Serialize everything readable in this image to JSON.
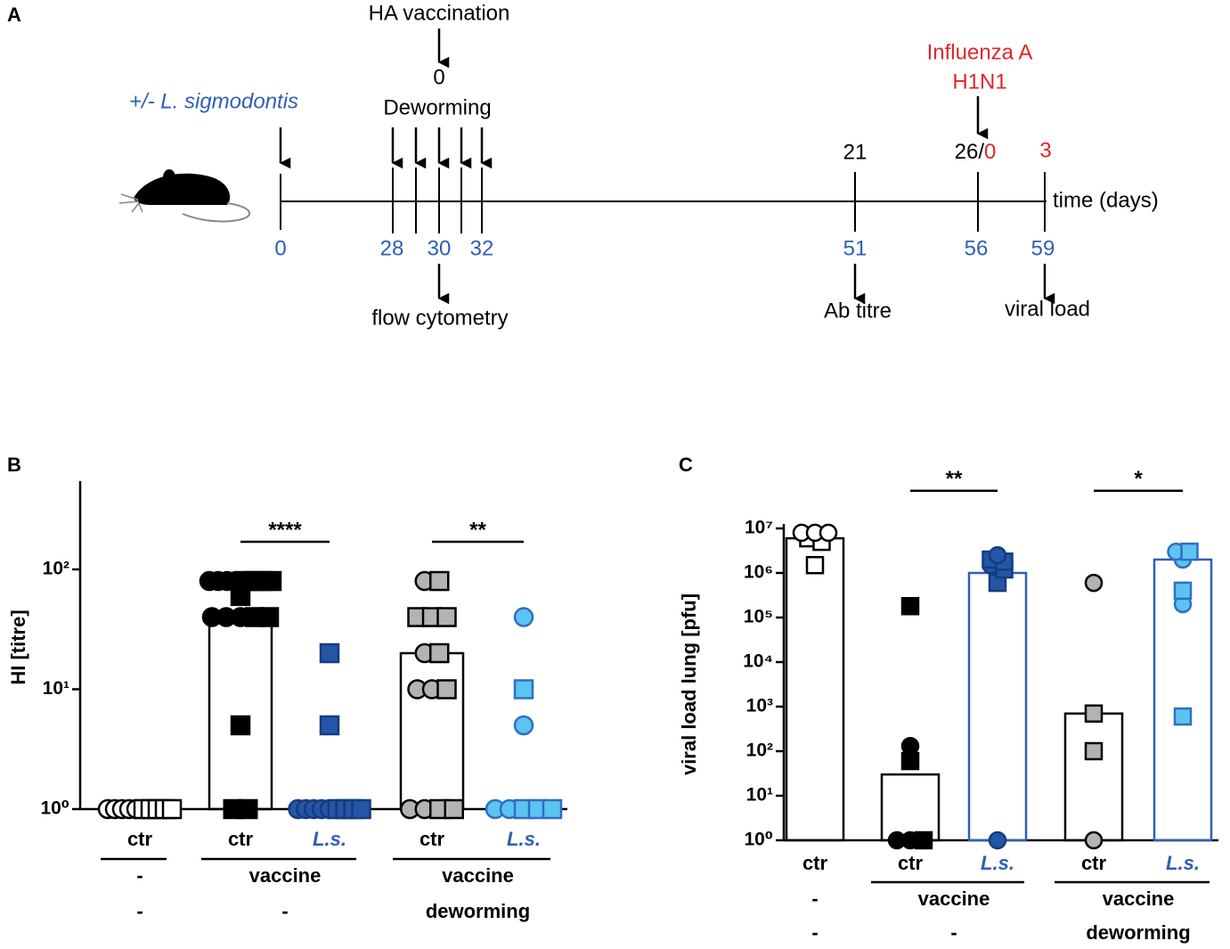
{
  "timeline": {
    "label": "A",
    "infection": "+/- L. sigmodontis",
    "vaccination": "HA vaccination",
    "vaccination_day": 0,
    "deworming": "Deworming",
    "challenge": [
      "Influenza A",
      "H1N1"
    ],
    "post_vaccination_days": [
      21,
      26
    ],
    "separator": "/",
    "post_challenge_days": [
      0,
      3
    ],
    "days": [
      0,
      28,
      30,
      32,
      51,
      56,
      59
    ],
    "readouts": [
      "flow cytometry",
      "Ab titre",
      "viral load"
    ],
    "axis_label": "time (days)"
  },
  "chart_data": [
    {
      "type": "bar",
      "label": "B",
      "ylabel": "HI [titre]",
      "log": true,
      "ylim": [
        1,
        500
      ],
      "yticks": [
        {
          "value": 1,
          "label": "10⁰"
        },
        {
          "value": 10,
          "label": "10¹"
        },
        {
          "value": 100,
          "label": "10²"
        }
      ],
      "groups": [
        {
          "category": "ctr",
          "category_color": "#000000",
          "italic": false,
          "bar": 1,
          "fill": "#ffffff",
          "edge": "#000000",
          "bar_edge": "#000000",
          "circles": [
            1,
            1,
            1,
            1,
            1
          ],
          "squares": [
            1,
            1,
            1,
            1,
            1
          ]
        },
        {
          "category": "ctr",
          "category_color": "#000000",
          "italic": false,
          "bar": 40,
          "fill": "#000000",
          "edge": "#000000",
          "bar_edge": "#000000",
          "circles": [
            80,
            80,
            80,
            80,
            40,
            40,
            40
          ],
          "squares": [
            80,
            80,
            80,
            80,
            60,
            40,
            40,
            5,
            1,
            1
          ]
        },
        {
          "category": "L.s.",
          "category_color": "#2f5fb4",
          "italic": true,
          "bar": 1,
          "fill": "#2456a6",
          "edge": "#143c80",
          "bar_edge": "#2f5fb4",
          "circles": [
            1,
            1,
            1,
            1,
            1
          ],
          "squares": [
            20,
            5,
            1,
            1,
            1,
            1
          ]
        },
        {
          "category": "ctr",
          "category_color": "#000000",
          "italic": false,
          "bar": 20,
          "fill": "#b3b3b3",
          "edge": "#000000",
          "bar_edge": "#000000",
          "circles": [
            80,
            20,
            10,
            10,
            1,
            1
          ],
          "squares": [
            80,
            40,
            40,
            40,
            20,
            10,
            1,
            1
          ]
        },
        {
          "category": "L.s.",
          "category_color": "#2f5fb4",
          "italic": true,
          "bar": 1,
          "fill": "#5cc4f0",
          "edge": "#2f6fc0",
          "bar_edge": "#2f5fb4",
          "circles": [
            40,
            5,
            1,
            1
          ],
          "squares": [
            10,
            1,
            1,
            1
          ]
        }
      ],
      "rows": [
        [
          {
            "label": "-",
            "from": 0,
            "to": 0,
            "line_above": true
          },
          {
            "label": "vaccine",
            "from": 1,
            "to": 2,
            "line_above": true
          },
          {
            "label": "vaccine",
            "from": 3,
            "to": 4,
            "line_above": true
          }
        ],
        [
          {
            "label": "-",
            "from": 0,
            "to": 0,
            "line_above": false
          },
          {
            "label": "-",
            "from": 1,
            "to": 2,
            "line_above": false
          },
          {
            "label": "deworming",
            "from": 3,
            "to": 4,
            "line_above": false
          }
        ]
      ],
      "significance": [
        {
          "label": "****",
          "from": 1,
          "to": 2,
          "y": 170
        },
        {
          "label": "**",
          "from": 3,
          "to": 4,
          "y": 170
        }
      ]
    },
    {
      "type": "bar",
      "label": "C",
      "ylabel": "viral load lung [pfu]",
      "log": true,
      "ylim": [
        1,
        10000000
      ],
      "yticks": [
        {
          "value": 1,
          "label": "10⁰"
        },
        {
          "value": 10,
          "label": "10¹"
        },
        {
          "value": 100,
          "label": "10²"
        },
        {
          "value": 1000,
          "label": "10³"
        },
        {
          "value": 10000,
          "label": "10⁴"
        },
        {
          "value": 100000,
          "label": "10⁵"
        },
        {
          "value": 1000000,
          "label": "10⁶"
        },
        {
          "value": 10000000,
          "label": "10⁷"
        }
      ],
      "groups": [
        {
          "category": "ctr",
          "category_color": "#000000",
          "italic": false,
          "bar": 6000000,
          "fill": "#ffffff",
          "edge": "#000000",
          "bar_edge": "#000000",
          "circles": [
            8000000,
            8000000,
            8000000
          ],
          "squares": [
            6000000,
            5000000,
            1500000
          ]
        },
        {
          "category": "ctr",
          "category_color": "#000000",
          "italic": false,
          "bar": 30,
          "fill": "#000000",
          "edge": "#000000",
          "bar_edge": "#000000",
          "circles": [
            130,
            1,
            1
          ],
          "squares": [
            180000,
            60,
            1
          ]
        },
        {
          "category": "L.s.",
          "category_color": "#2f5fb4",
          "italic": true,
          "bar": 1000000,
          "fill": "#2456a6",
          "edge": "#143c80",
          "bar_edge": "#2f5fb4",
          "circles": [
            2500000,
            1500000,
            1
          ],
          "squares": [
            2000000,
            1800000,
            1200000,
            600000
          ]
        },
        {
          "category": "ctr",
          "category_color": "#000000",
          "italic": false,
          "bar": 700,
          "fill": "#b3b3b3",
          "edge": "#000000",
          "bar_edge": "#000000",
          "circles": [
            600000,
            1
          ],
          "squares": [
            700,
            100
          ]
        },
        {
          "category": "L.s.",
          "category_color": "#2f5fb4",
          "italic": true,
          "bar": 2000000,
          "fill": "#5cc4f0",
          "edge": "#2f6fc0",
          "bar_edge": "#2f5fb4",
          "circles": [
            3000000,
            2000000,
            200000
          ],
          "squares": [
            3000000,
            400000,
            600
          ]
        }
      ],
      "rows": [
        [
          {
            "label": "-",
            "from": 0,
            "to": 0,
            "line_above": false
          },
          {
            "label": "vaccine",
            "from": 1,
            "to": 2,
            "line_above": true
          },
          {
            "label": "vaccine",
            "from": 3,
            "to": 4,
            "line_above": true
          }
        ],
        [
          {
            "label": "-",
            "from": 0,
            "to": 0,
            "line_above": false
          },
          {
            "label": "-",
            "from": 1,
            "to": 2,
            "line_above": false
          },
          {
            "label": "deworming",
            "from": 3,
            "to": 4,
            "line_above": false
          }
        ]
      ],
      "significance": [
        {
          "label": "**",
          "from": 1,
          "to": 2,
          "y": 70000000
        },
        {
          "label": "*",
          "from": 3,
          "to": 4,
          "y": 70000000
        }
      ]
    }
  ]
}
